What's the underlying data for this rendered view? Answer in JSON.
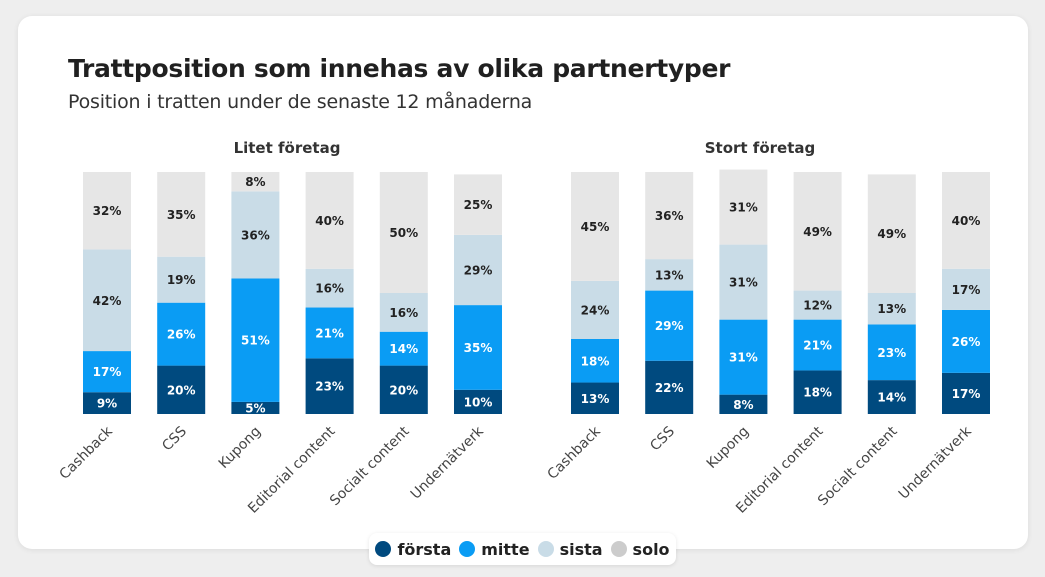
{
  "title": "Trattposition som innehas av olika partnertyper",
  "subtitle": "Position i tratten under de senaste 12 månaderna",
  "colors": {
    "forsta": "#004a7f",
    "mitte": "#0a9cf4",
    "sista": "#c9dce7",
    "solo": "#e6e6e6"
  },
  "legend": [
    {
      "label": "första",
      "color_key": "forsta"
    },
    {
      "label": "mitte",
      "color_key": "mitte"
    },
    {
      "label": "sista",
      "color_key": "sista"
    },
    {
      "label": "solo",
      "color_key": "solo"
    }
  ],
  "chart_data": [
    {
      "type": "bar",
      "stacked": true,
      "title": "Litet företag",
      "categories": [
        "Cashback",
        "CSS",
        "Kupong",
        "Editorial content",
        "Socialt content",
        "Undernätverk"
      ],
      "series": [
        {
          "name": "första",
          "values": [
            9,
            20,
            5,
            23,
            20,
            10
          ],
          "labels": [
            "9%",
            "20%",
            "5%",
            "23%",
            "20%",
            "10%"
          ]
        },
        {
          "name": "mitte",
          "values": [
            17,
            26,
            51,
            21,
            14,
            35
          ],
          "labels": [
            "17%",
            "26%",
            "51%",
            "21%",
            "14%",
            "35%"
          ]
        },
        {
          "name": "sista",
          "values": [
            42,
            19,
            36,
            16,
            16,
            29
          ],
          "labels": [
            "42%",
            "19%",
            "36%",
            "16%",
            "16%",
            "29%"
          ]
        },
        {
          "name": "solo",
          "values": [
            32,
            35,
            8,
            40,
            50,
            25
          ],
          "labels": [
            "32%",
            "35%",
            "8%",
            "40%",
            "50%",
            "25%"
          ]
        }
      ],
      "ylim": [
        0,
        100
      ]
    },
    {
      "type": "bar",
      "stacked": true,
      "title": "Stort företag",
      "categories": [
        "Cashback",
        "CSS",
        "Kupong",
        "Editorial content",
        "Socialt content",
        "Undernätverk"
      ],
      "series": [
        {
          "name": "första",
          "values": [
            13,
            22,
            8,
            18,
            14,
            17
          ],
          "labels": [
            "13%",
            "22%",
            "8%",
            "18%",
            "14%",
            "17%"
          ]
        },
        {
          "name": "mitte",
          "values": [
            18,
            29,
            31,
            21,
            23,
            26
          ],
          "labels": [
            "18%",
            "29%",
            "31%",
            "21%",
            "23%",
            "26%"
          ]
        },
        {
          "name": "sista",
          "values": [
            24,
            13,
            31,
            12,
            13,
            17
          ],
          "labels": [
            "24%",
            "13%",
            "31%",
            "12%",
            "13%",
            "17%"
          ]
        },
        {
          "name": "solo",
          "values": [
            45,
            36,
            31,
            49,
            49,
            40
          ],
          "labels": [
            "45%",
            "36%",
            "31%",
            "49%",
            "49%",
            "40%"
          ]
        }
      ],
      "ylim": [
        0,
        100
      ]
    }
  ]
}
